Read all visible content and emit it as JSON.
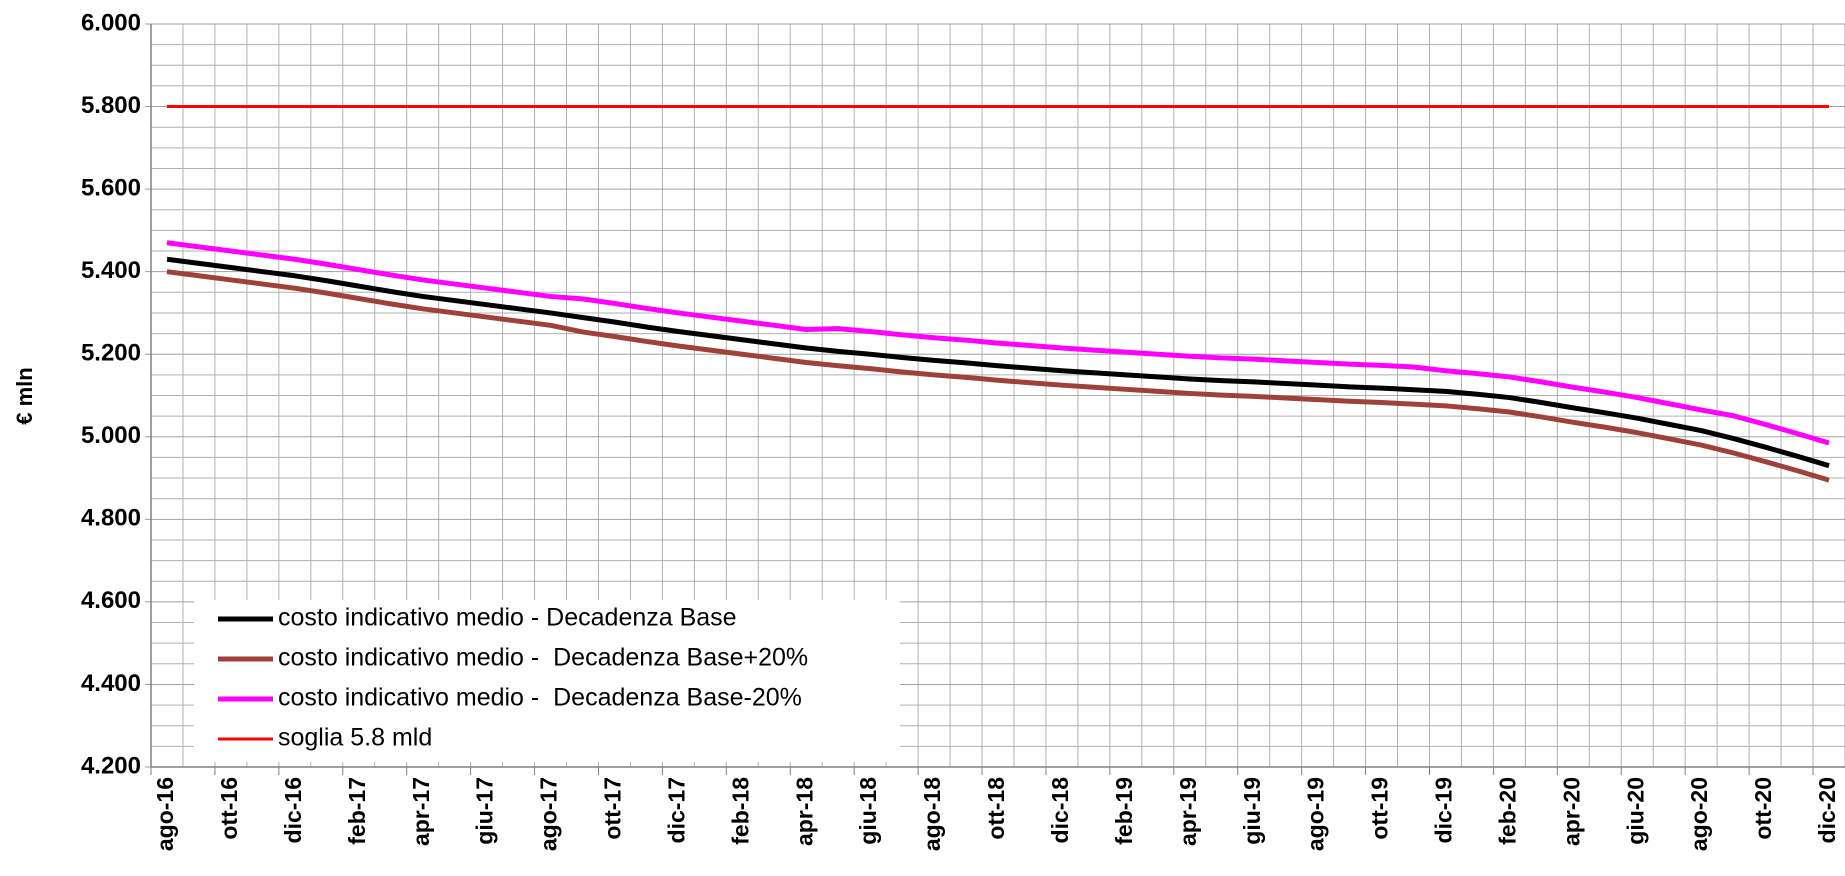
{
  "chart_data": {
    "type": "line",
    "y_label": "€ mln",
    "categories": [
      "ago-16",
      null,
      "ott-16",
      null,
      "dic-16",
      null,
      "feb-17",
      null,
      "apr-17",
      null,
      "giu-17",
      null,
      "ago-17",
      null,
      "ott-17",
      null,
      "dic-17",
      null,
      "feb-18",
      null,
      "apr-18",
      null,
      "giu-18",
      null,
      "ago-18",
      null,
      "ott-18",
      null,
      "dic-18",
      null,
      "feb-19",
      null,
      "apr-19",
      null,
      "giu-19",
      null,
      "ago-19",
      null,
      "ott-19",
      null,
      "dic-19",
      null,
      "feb-20",
      null,
      "apr-20",
      null,
      "giu-20",
      null,
      "ago-20",
      null,
      "ott-20",
      null,
      "dic-20"
    ],
    "series": [
      {
        "name": "costo indicativo medio - Decadenza Base",
        "color": "#000000",
        "values": [
          5430,
          5420,
          5410,
          5400,
          5390,
          5378,
          5365,
          5352,
          5340,
          5330,
          5320,
          5310,
          5300,
          5289,
          5278,
          5266,
          5255,
          5245,
          5235,
          5225,
          5215,
          5207,
          5200,
          5192,
          5185,
          5179,
          5172,
          5166,
          5160,
          5155,
          5150,
          5145,
          5140,
          5136,
          5133,
          5129,
          5125,
          5121,
          5118,
          5114,
          5110,
          5103,
          5095,
          5083,
          5070,
          5058,
          5045,
          5030,
          5015,
          4996,
          4975,
          4953,
          4930
        ]
      },
      {
        "name": "costo indicativo medio -  Decadenza Base+20%",
        "color": "#a0403a",
        "values": [
          5400,
          5390,
          5380,
          5370,
          5360,
          5348,
          5335,
          5322,
          5310,
          5300,
          5290,
          5280,
          5270,
          5254,
          5243,
          5231,
          5220,
          5210,
          5200,
          5190,
          5180,
          5172,
          5165,
          5157,
          5150,
          5144,
          5137,
          5131,
          5125,
          5120,
          5115,
          5110,
          5105,
          5101,
          5098,
          5094,
          5090,
          5086,
          5083,
          5079,
          5075,
          5068,
          5060,
          5048,
          5035,
          5023,
          5010,
          4995,
          4980,
          4961,
          4940,
          4918,
          4895
        ]
      },
      {
        "name": "costo indicativo medio -  Decadenza Base-20%",
        "color": "#ff00ff",
        "values": [
          5470,
          5460,
          5450,
          5440,
          5430,
          5418,
          5405,
          5392,
          5380,
          5370,
          5360,
          5350,
          5340,
          5334,
          5323,
          5311,
          5300,
          5290,
          5280,
          5270,
          5260,
          5262,
          5255,
          5247,
          5240,
          5234,
          5227,
          5221,
          5215,
          5210,
          5205,
          5200,
          5195,
          5191,
          5188,
          5184,
          5180,
          5176,
          5173,
          5169,
          5160,
          5153,
          5145,
          5133,
          5120,
          5108,
          5095,
          5080,
          5065,
          5051,
          5030,
          5008,
          4985
        ]
      },
      {
        "name": "soglia 5.8 mld",
        "color": "#ff0000",
        "values": [
          5800,
          5800,
          5800,
          5800,
          5800,
          5800,
          5800,
          5800,
          5800,
          5800,
          5800,
          5800,
          5800,
          5800,
          5800,
          5800,
          5800,
          5800,
          5800,
          5800,
          5800,
          5800,
          5800,
          5800,
          5800,
          5800,
          5800,
          5800,
          5800,
          5800,
          5800,
          5800,
          5800,
          5800,
          5800,
          5800,
          5800,
          5800,
          5800,
          5800,
          5800,
          5800,
          5800,
          5800,
          5800,
          5800,
          5800,
          5800,
          5800,
          5800,
          5800,
          5800,
          5800
        ]
      }
    ],
    "ylim": [
      4200,
      6000
    ],
    "yticks": [
      {
        "value": 4200,
        "label": "4.200"
      },
      {
        "value": 4400,
        "label": "4.400"
      },
      {
        "value": 4600,
        "label": "4.600"
      },
      {
        "value": 4800,
        "label": "4.800"
      },
      {
        "value": 5000,
        "label": "5.000"
      },
      {
        "value": 5200,
        "label": "5.200"
      },
      {
        "value": 5400,
        "label": "5.400"
      },
      {
        "value": 5600,
        "label": "5.600"
      },
      {
        "value": 5800,
        "label": "5.800"
      },
      {
        "value": 6000,
        "label": "6.000"
      }
    ],
    "grid": true,
    "legend": "lower left"
  }
}
